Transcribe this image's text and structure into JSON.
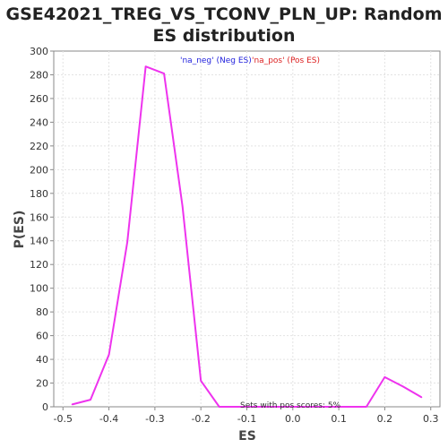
{
  "chart_data": {
    "type": "line",
    "title_lines": [
      "GSE42021_TREG_VS_TCONV_PLN_UP: Random",
      "ES distribution"
    ],
    "xlabel": "ES",
    "ylabel": "P(ES)",
    "xlim": [
      -0.52,
      0.32
    ],
    "ylim": [
      0,
      300
    ],
    "x_ticks": [
      -0.5,
      -0.4,
      -0.3,
      -0.2,
      -0.1,
      0.0,
      0.1,
      0.2,
      0.3
    ],
    "x_tick_labels": [
      "-0.5",
      "-0.4",
      "-0.3",
      "-0.2",
      "-0.1",
      "0.0",
      "0.1",
      "0.2",
      "0.3"
    ],
    "y_ticks": [
      0,
      20,
      40,
      60,
      80,
      100,
      120,
      140,
      160,
      180,
      200,
      220,
      240,
      260,
      280,
      300
    ],
    "y_tick_labels": [
      "0",
      "20",
      "40",
      "60",
      "80",
      "100",
      "120",
      "140",
      "160",
      "180",
      "200",
      "220",
      "240",
      "260",
      "280",
      "300"
    ],
    "grid": true,
    "legend": [
      {
        "label": "'na_neg' (Neg ES)",
        "color": "#2222dd"
      },
      {
        "label": "'na_pos' (Pos ES)",
        "color": "#dd2222"
      }
    ],
    "annotation": "Sets with pos scores: 5%",
    "series": [
      {
        "color": "#ee33ee",
        "x": [
          -0.48,
          -0.44,
          -0.4,
          -0.36,
          -0.32,
          -0.28,
          -0.24,
          -0.2,
          -0.16,
          -0.12,
          -0.08,
          -0.04,
          0.0,
          0.04,
          0.08,
          0.12,
          0.16,
          0.2,
          0.24,
          0.28
        ],
        "y": [
          2,
          6,
          44,
          139,
          287,
          281,
          169,
          22,
          0,
          0,
          0,
          0,
          0,
          0,
          0,
          0,
          0,
          25,
          17,
          8
        ]
      }
    ]
  }
}
